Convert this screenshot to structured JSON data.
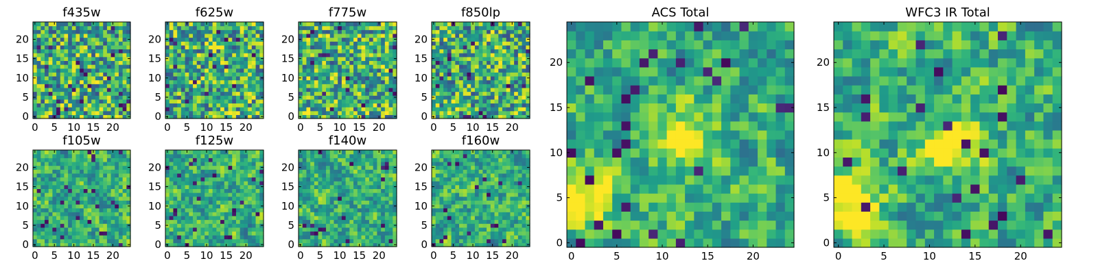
{
  "figure": {
    "colormap": "viridis",
    "panel_titles": [
      "f435w",
      "f625w",
      "f775w",
      "f850lp",
      "f105w",
      "f125w",
      "f140w",
      "f160w",
      "ACS Total",
      "WFC3 IR Total"
    ]
  },
  "chart_data": [
    {
      "type": "heatmap",
      "title": "f435w",
      "grid_size": 25,
      "xlim": [
        -0.5,
        24.5
      ],
      "ylim": [
        -0.5,
        24.5
      ],
      "xticks": [
        0,
        5,
        10,
        15,
        20
      ],
      "yticks": [
        0,
        5,
        10,
        15,
        20
      ],
      "colormap": "viridis"
    },
    {
      "type": "heatmap",
      "title": "f625w",
      "grid_size": 25,
      "xlim": [
        -0.5,
        24.5
      ],
      "ylim": [
        -0.5,
        24.5
      ],
      "xticks": [
        0,
        5,
        10,
        15,
        20
      ],
      "yticks": [
        0,
        5,
        10,
        15,
        20
      ],
      "colormap": "viridis"
    },
    {
      "type": "heatmap",
      "title": "f775w",
      "grid_size": 25,
      "xlim": [
        -0.5,
        24.5
      ],
      "ylim": [
        -0.5,
        24.5
      ],
      "xticks": [
        0,
        5,
        10,
        15,
        20
      ],
      "yticks": [
        0,
        5,
        10,
        15,
        20
      ],
      "colormap": "viridis"
    },
    {
      "type": "heatmap",
      "title": "f850lp",
      "grid_size": 25,
      "xlim": [
        -0.5,
        24.5
      ],
      "ylim": [
        -0.5,
        24.5
      ],
      "xticks": [
        0,
        5,
        10,
        15,
        20
      ],
      "yticks": [
        0,
        5,
        10,
        15,
        20
      ],
      "colormap": "viridis"
    },
    {
      "type": "heatmap",
      "title": "f105w",
      "grid_size": 25,
      "xlim": [
        -0.5,
        24.5
      ],
      "ylim": [
        -0.5,
        24.5
      ],
      "xticks": [
        0,
        5,
        10,
        15,
        20
      ],
      "yticks": [
        0,
        5,
        10,
        15,
        20
      ],
      "colormap": "viridis"
    },
    {
      "type": "heatmap",
      "title": "f125w",
      "grid_size": 25,
      "xlim": [
        -0.5,
        24.5
      ],
      "ylim": [
        -0.5,
        24.5
      ],
      "xticks": [
        0,
        5,
        10,
        15,
        20
      ],
      "yticks": [
        0,
        5,
        10,
        15,
        20
      ],
      "colormap": "viridis"
    },
    {
      "type": "heatmap",
      "title": "f140w",
      "grid_size": 25,
      "xlim": [
        -0.5,
        24.5
      ],
      "ylim": [
        -0.5,
        24.5
      ],
      "xticks": [
        0,
        5,
        10,
        15,
        20
      ],
      "yticks": [
        0,
        5,
        10,
        15,
        20
      ],
      "colormap": "viridis"
    },
    {
      "type": "heatmap",
      "title": "f160w",
      "grid_size": 25,
      "xlim": [
        -0.5,
        24.5
      ],
      "ylim": [
        -0.5,
        24.5
      ],
      "xticks": [
        0,
        5,
        10,
        15,
        20
      ],
      "yticks": [
        0,
        5,
        10,
        15,
        20
      ],
      "colormap": "viridis"
    },
    {
      "type": "heatmap",
      "title": "ACS Total",
      "grid_size": 25,
      "xlim": [
        -0.5,
        24.5
      ],
      "ylim": [
        -0.5,
        24.5
      ],
      "xticks": [
        0,
        5,
        10,
        15,
        20
      ],
      "yticks": [
        0,
        5,
        10,
        15,
        20
      ],
      "colormap": "viridis",
      "features": [
        {
          "label": "bright blob",
          "x": 12.5,
          "y": 11.5,
          "level": 1.0
        },
        {
          "label": "bright blob",
          "x": 1,
          "y": 5,
          "level": 0.95
        }
      ]
    },
    {
      "type": "heatmap",
      "title": "WFC3 IR Total",
      "grid_size": 25,
      "xlim": [
        -0.5,
        24.5
      ],
      "ylim": [
        -0.5,
        24.5
      ],
      "xticks": [
        0,
        5,
        10,
        15,
        20
      ],
      "yticks": [
        0,
        5,
        10,
        15,
        20
      ],
      "colormap": "viridis",
      "features": [
        {
          "label": "bright blob",
          "x": 12,
          "y": 11,
          "level": 1.0
        },
        {
          "label": "bright blob",
          "x": 1.5,
          "y": 4.5,
          "level": 1.0
        }
      ]
    }
  ]
}
